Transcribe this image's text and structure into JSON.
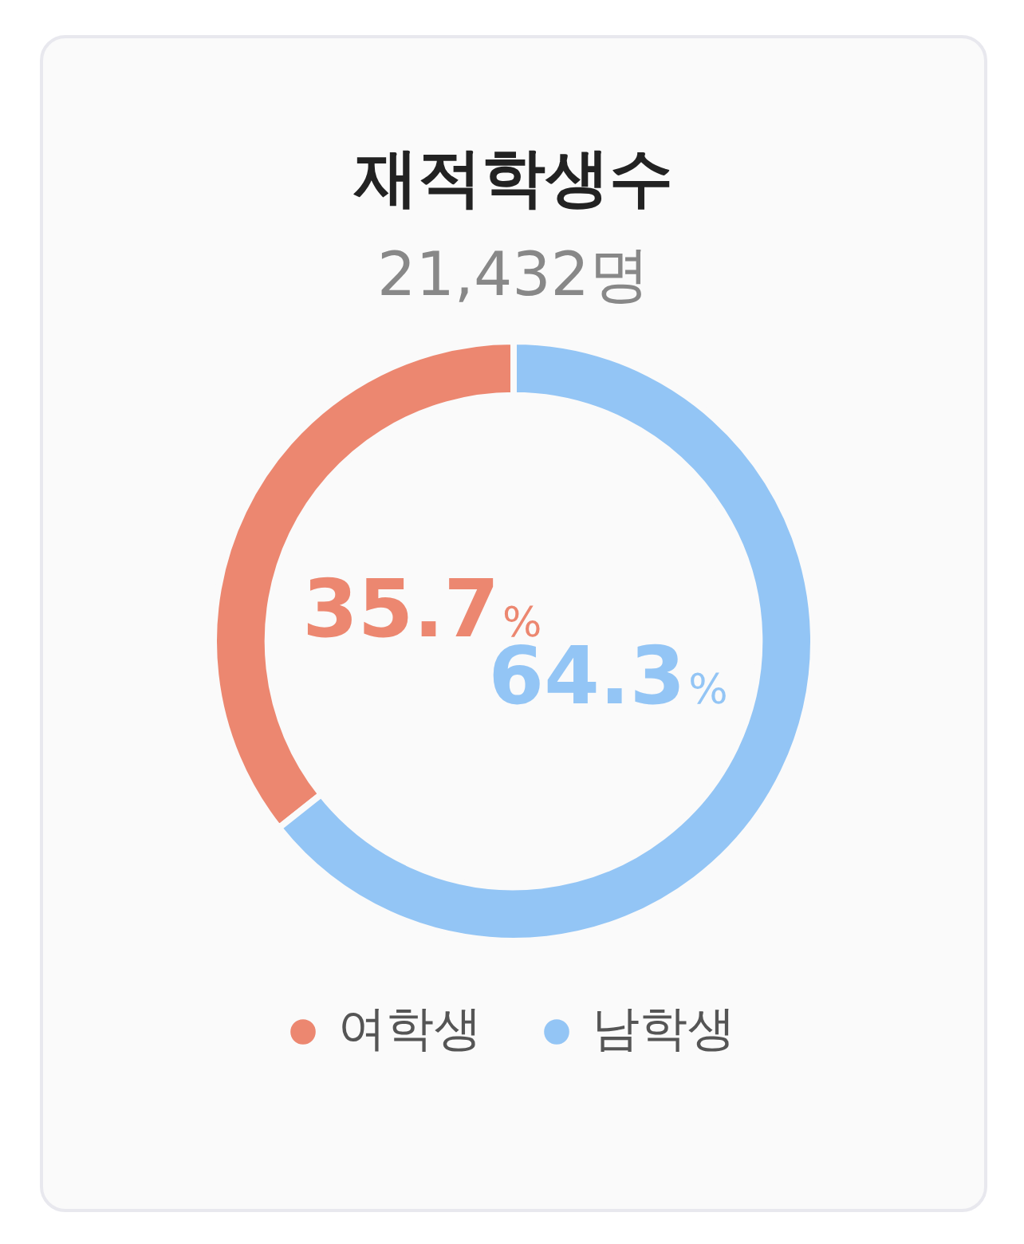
{
  "chart_data": {
    "type": "donut",
    "title": "재적학생수",
    "subtitle": "21,432명",
    "categories": [
      "여학생",
      "남학생"
    ],
    "values": [
      35.7,
      64.3
    ],
    "colors": [
      "#ec8770",
      "#93c5f5"
    ],
    "value_labels": [
      "35.7%",
      "64.3%"
    ],
    "legend": "bottom"
  }
}
